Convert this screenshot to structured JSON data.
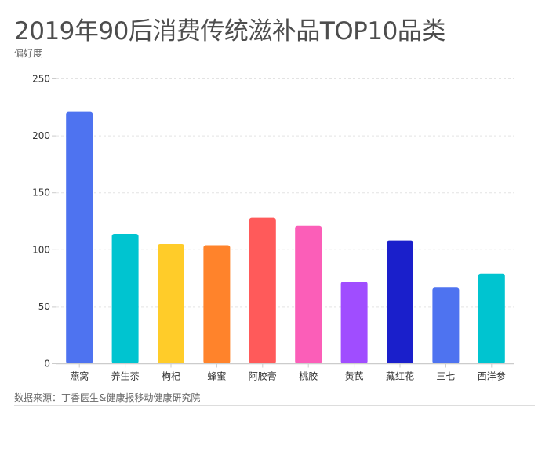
{
  "title": "2019年90后消费传统滋补品TOP10品类",
  "source": "数据来源：丁香医生&健康报移动健康研究院",
  "chart_data": {
    "type": "bar",
    "title": "2019年90后消费传统滋补品TOP10品类",
    "ylabel": "偏好度",
    "xlabel": "",
    "categories": [
      "燕窝",
      "养生茶",
      "枸杞",
      "蜂蜜",
      "阿胶膏",
      "桃胶",
      "黄芪",
      "藏红花",
      "三七",
      "西洋参"
    ],
    "values": [
      221,
      114,
      105,
      104,
      128,
      121,
      72,
      108,
      67,
      79
    ],
    "colors": [
      "#4e73f0",
      "#00c4d0",
      "#ffcc29",
      "#ff832b",
      "#ff5a5a",
      "#fb5eb8",
      "#a04dff",
      "#1a1fcb",
      "#4e73f0",
      "#00c4d0"
    ],
    "ylim": [
      0,
      250
    ],
    "yticks": [
      0,
      50,
      100,
      150,
      200,
      250
    ],
    "grid": true,
    "legend": "none"
  }
}
